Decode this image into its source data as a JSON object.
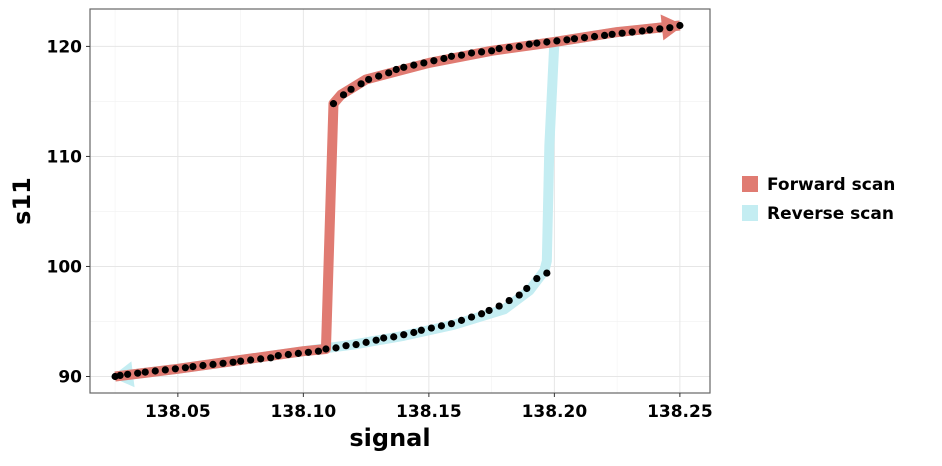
{
  "chart_data": {
    "type": "line",
    "xlabel": "signal",
    "ylabel": "s11",
    "xlim": [
      138.015,
      138.262
    ],
    "ylim": [
      88.5,
      123.4
    ],
    "x_ticks": [
      138.05,
      138.1,
      138.15,
      138.2,
      138.25
    ],
    "x_tick_labels": [
      "138.05",
      "138.10",
      "138.15",
      "138.20",
      "138.25"
    ],
    "y_ticks": [
      90,
      100,
      110,
      120
    ],
    "y_tick_labels": [
      "90",
      "100",
      "110",
      "120"
    ],
    "grid": true,
    "legend_position": "right",
    "legend": [
      {
        "label": "Forward scan",
        "color": "#e07b72"
      },
      {
        "label": "Reverse scan",
        "color": "#c4edf2"
      }
    ],
    "colors": {
      "forward": "#e07b72",
      "reverse": "#c4edf2",
      "points": "#000000"
    },
    "series": [
      {
        "name": "Forward scan",
        "direction": "increasing",
        "x": [
          138.025,
          138.05,
          138.075,
          138.1,
          138.109,
          138.112,
          138.115,
          138.125,
          138.15,
          138.175,
          138.2,
          138.225,
          138.25
        ],
        "y": [
          90.0,
          90.7,
          91.5,
          92.3,
          92.5,
          114.8,
          115.6,
          117.0,
          118.5,
          119.6,
          120.4,
          121.3,
          121.9
        ]
      },
      {
        "name": "Reverse scan",
        "direction": "decreasing",
        "x": [
          138.25,
          138.225,
          138.2,
          138.198,
          138.197,
          138.196,
          138.19,
          138.18,
          138.16,
          138.14,
          138.12,
          138.1,
          138.075,
          138.05,
          138.025
        ],
        "y": [
          121.9,
          121.3,
          120.4,
          111.0,
          100.5,
          99.6,
          97.8,
          96.1,
          94.7,
          93.7,
          92.9,
          92.3,
          91.5,
          90.7,
          90.0
        ]
      }
    ],
    "points": {
      "x": [
        138.025,
        138.027,
        138.03,
        138.034,
        138.037,
        138.041,
        138.045,
        138.049,
        138.053,
        138.056,
        138.06,
        138.064,
        138.068,
        138.072,
        138.075,
        138.079,
        138.083,
        138.087,
        138.09,
        138.094,
        138.098,
        138.102,
        138.106,
        138.109,
        138.113,
        138.117,
        138.121,
        138.125,
        138.129,
        138.132,
        138.136,
        138.14,
        138.144,
        138.147,
        138.151,
        138.155,
        138.159,
        138.163,
        138.167,
        138.171,
        138.174,
        138.178,
        138.182,
        138.186,
        138.189,
        138.193,
        138.197,
        138.112,
        138.116,
        138.119,
        138.123,
        138.126,
        138.13,
        138.134,
        138.137,
        138.14,
        138.144,
        138.148,
        138.152,
        138.156,
        138.159,
        138.163,
        138.167,
        138.171,
        138.175,
        138.178,
        138.182,
        138.186,
        138.19,
        138.193,
        138.197,
        138.201,
        138.205,
        138.208,
        138.212,
        138.216,
        138.22,
        138.223,
        138.227,
        138.231,
        138.235,
        138.238,
        138.242,
        138.246,
        138.25
      ],
      "y": [
        90.0,
        90.1,
        90.2,
        90.3,
        90.4,
        90.5,
        90.6,
        90.7,
        90.8,
        90.9,
        91.0,
        91.1,
        91.2,
        91.3,
        91.4,
        91.5,
        91.6,
        91.7,
        91.9,
        92.0,
        92.1,
        92.2,
        92.3,
        92.5,
        92.6,
        92.8,
        92.9,
        93.1,
        93.3,
        93.5,
        93.6,
        93.8,
        94.0,
        94.2,
        94.4,
        94.6,
        94.8,
        95.1,
        95.4,
        95.7,
        96.0,
        96.4,
        96.9,
        97.4,
        98.0,
        98.9,
        99.4,
        114.8,
        115.6,
        116.1,
        116.6,
        117.0,
        117.3,
        117.6,
        117.9,
        118.1,
        118.3,
        118.5,
        118.7,
        118.9,
        119.1,
        119.2,
        119.4,
        119.5,
        119.6,
        119.8,
        119.9,
        120.0,
        120.2,
        120.3,
        120.4,
        120.5,
        120.6,
        120.7,
        120.8,
        120.9,
        121.0,
        121.1,
        121.2,
        121.3,
        121.4,
        121.5,
        121.6,
        121.7,
        121.9
      ]
    }
  }
}
